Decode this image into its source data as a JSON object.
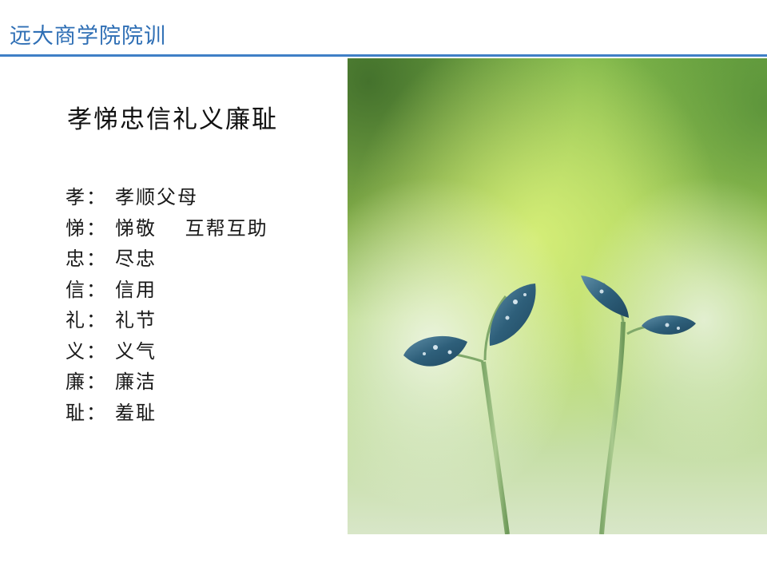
{
  "header": {
    "title": "远大商学院院训"
  },
  "main": {
    "heading": "孝悌忠信礼义廉耻",
    "virtues": [
      {
        "key": "孝",
        "sep": "：",
        "meaning": "孝顺父母"
      },
      {
        "key": "悌",
        "sep": "：",
        "meaning": "悌敬　 互帮互助"
      },
      {
        "key": "忠",
        "sep": "：",
        "meaning": "尽忠"
      },
      {
        "key": "信",
        "sep": "：",
        "meaning": "信用"
      },
      {
        "key": "礼",
        "sep": "：",
        "meaning": "礼节"
      },
      {
        "key": "义",
        "sep": "：",
        "meaning": "义气"
      },
      {
        "key": "廉",
        "sep": "：",
        "meaning": "廉洁"
      },
      {
        "key": "耻",
        "sep": "：",
        "meaning": "羞耻"
      }
    ]
  },
  "photo": {
    "subject": "sprout-photo"
  },
  "colors": {
    "accent": "#2f6fb5",
    "rule": "#3f7fc6",
    "text": "#111111"
  }
}
